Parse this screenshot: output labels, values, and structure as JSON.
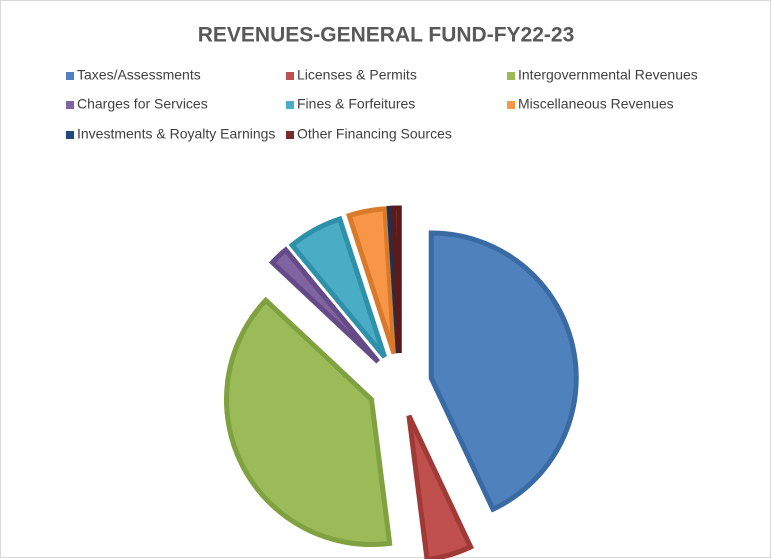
{
  "chart_data": {
    "type": "pie",
    "title": "REVENUES-GENERAL FUND-FY22-23",
    "categories": [
      "Taxes/Assessments",
      "Licenses & Permits",
      "Intergovernmental Revenues",
      "Charges for Services",
      "Fines & Forfeitures",
      "Miscellaneous Revenues",
      "Investments & Royalty Earnings",
      "Other Financing Sources"
    ],
    "values": [
      43,
      5,
      39,
      2,
      6,
      4,
      0.3,
      0.7
    ],
    "colors": [
      "#4f81bd",
      "#c0504d",
      "#9bbb59",
      "#8064a2",
      "#4bacc6",
      "#f79646",
      "#1f497d",
      "#772c2a"
    ],
    "borders": [
      "#3a6aa3",
      "#a03a37",
      "#7fa13f",
      "#644a86",
      "#2f90aa",
      "#d97a2a",
      "#13345f",
      "#5a1c1a"
    ],
    "exploded": true,
    "legend": "top"
  }
}
